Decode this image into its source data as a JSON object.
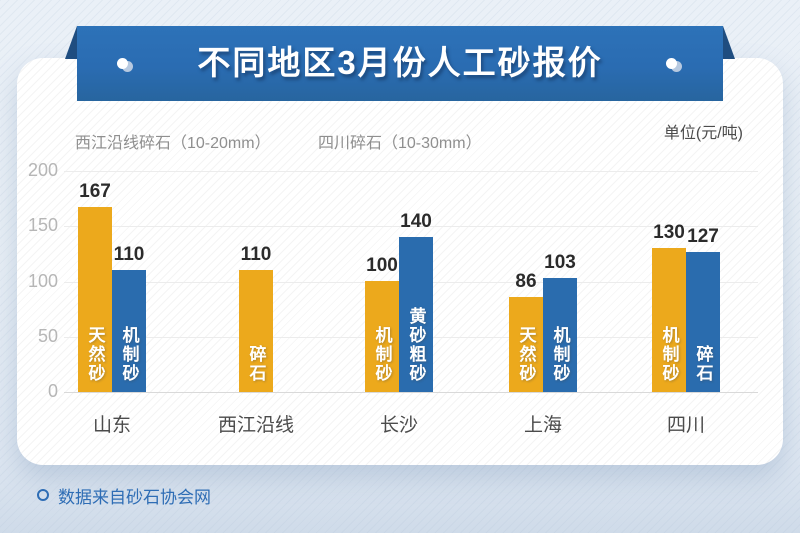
{
  "header": {
    "title": "不同地区3月份人工砂报价"
  },
  "subtitles": {
    "left1": "西江沿线碎石（10-20mm）",
    "left2": "四川碎石（10-30mm）",
    "unit": "单位(元/吨)"
  },
  "footer": {
    "text": "数据来自砂石协会网"
  },
  "colors": {
    "ribbon": "#2a6cb2",
    "ribbon_fold": "#1f4d80",
    "bar_yellow": "#eca91c",
    "bar_blue": "#2a6cae",
    "footer_text": "#2e6db5",
    "value_label": "#2b2b2b",
    "category_label": "#4b4b4b",
    "tick_label": "#b6b6b6",
    "gridline": "#ececec",
    "baseline": "#d9d9d9"
  },
  "chart_data": {
    "type": "bar",
    "title": "不同地区3月份人工砂报价",
    "unit": "元/吨",
    "xlabel": "",
    "ylabel": "",
    "ylim": [
      0,
      200
    ],
    "y_ticks": [
      0,
      50,
      100,
      150,
      200
    ],
    "grid": true,
    "legend_position": "labels-inside-bars",
    "categories": [
      "山东",
      "西江沿线",
      "长沙",
      "上海",
      "四川"
    ],
    "groups": [
      {
        "category": "山东",
        "bars": [
          {
            "label": "天然砂",
            "value": 167,
            "color": "yellow"
          },
          {
            "label": "机制砂",
            "value": 110,
            "color": "blue"
          }
        ]
      },
      {
        "category": "西江沿线",
        "bars": [
          {
            "label": "碎石",
            "value": 110,
            "color": "yellow"
          }
        ]
      },
      {
        "category": "长沙",
        "bars": [
          {
            "label": "机制砂",
            "value": 100,
            "color": "yellow"
          },
          {
            "label": "黄砂粗砂",
            "value": 140,
            "color": "blue"
          }
        ]
      },
      {
        "category": "上海",
        "bars": [
          {
            "label": "天然砂",
            "value": 86,
            "color": "yellow"
          },
          {
            "label": "机制砂",
            "value": 103,
            "color": "blue"
          }
        ]
      },
      {
        "category": "四川",
        "bars": [
          {
            "label": "机制砂",
            "value": 130,
            "color": "yellow"
          },
          {
            "label": "碎石",
            "value": 127,
            "color": "blue"
          }
        ]
      }
    ]
  }
}
